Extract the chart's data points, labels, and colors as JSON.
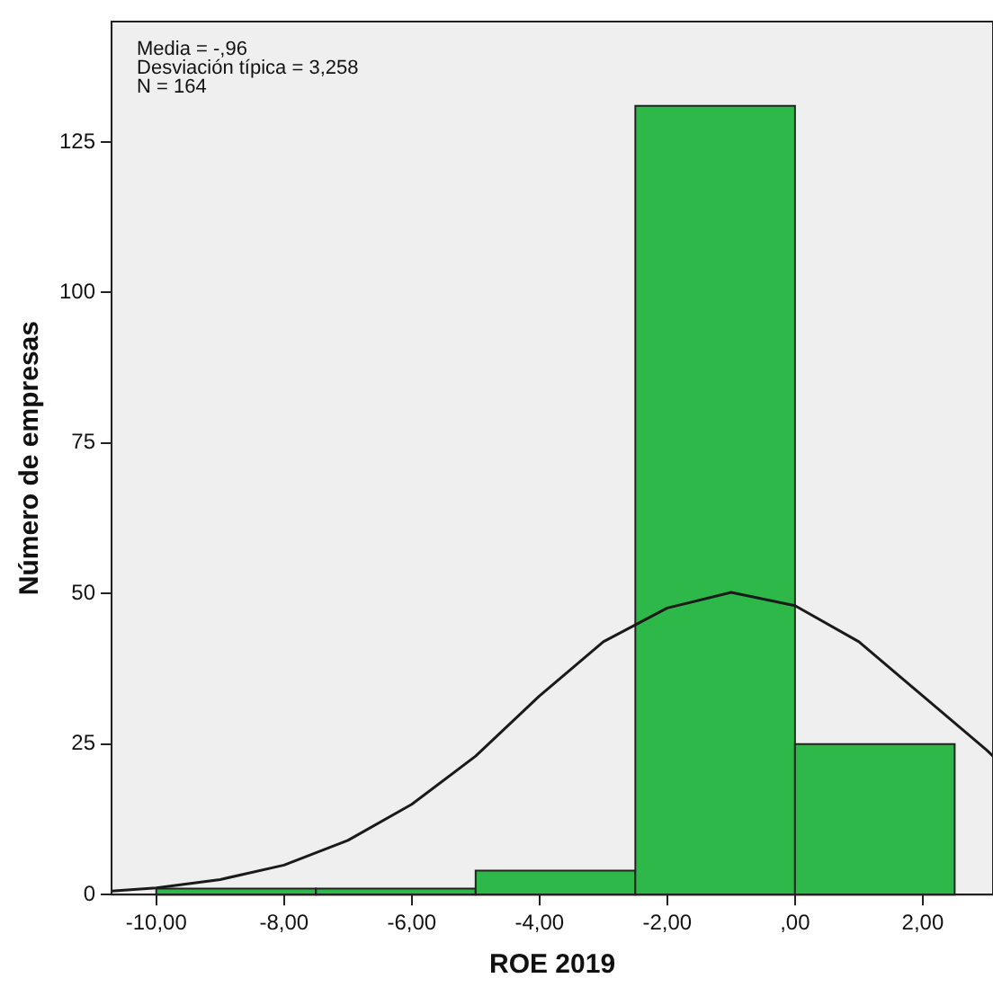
{
  "chart_data": {
    "type": "histogram",
    "xlabel": "ROE 2019",
    "ylabel": "Número de empresas",
    "annotations": [
      "Media = -,96",
      "Desviación típica = 3,258",
      "N = 164"
    ],
    "bins": [
      -10,
      -7.5,
      -5,
      -2.5,
      0,
      2.5
    ],
    "values": [
      1,
      1,
      4,
      131,
      25
    ],
    "color": "#2fb84a",
    "series": [
      {
        "type": "line",
        "color": "#1a1a1a",
        "x": [
          -10.7,
          -10,
          -9,
          -8,
          -7,
          -6,
          -5,
          -4,
          -3,
          -2,
          -1,
          0,
          1,
          2,
          3,
          3.1
        ],
        "values": [
          0.6,
          1.1,
          2.5,
          4.9,
          9,
          15,
          23,
          33,
          42,
          47.6,
          50.2,
          48,
          42,
          33,
          24,
          23
        ]
      }
    ],
    "xlim": [
      -10.7,
      3.1
    ],
    "ylim": [
      0,
      145
    ],
    "xticks": [
      {
        "value": -10,
        "label": "-10,00"
      },
      {
        "value": -8,
        "label": "-8,00"
      },
      {
        "value": -6,
        "label": "-6,00"
      },
      {
        "value": -4,
        "label": "-4,00"
      },
      {
        "value": -2,
        "label": "-2,00"
      },
      {
        "value": 0,
        "label": ",00"
      },
      {
        "value": 2,
        "label": "2,00"
      }
    ],
    "yticks": [
      0,
      25,
      50,
      75,
      100,
      125
    ],
    "grid": false,
    "legend": false
  }
}
